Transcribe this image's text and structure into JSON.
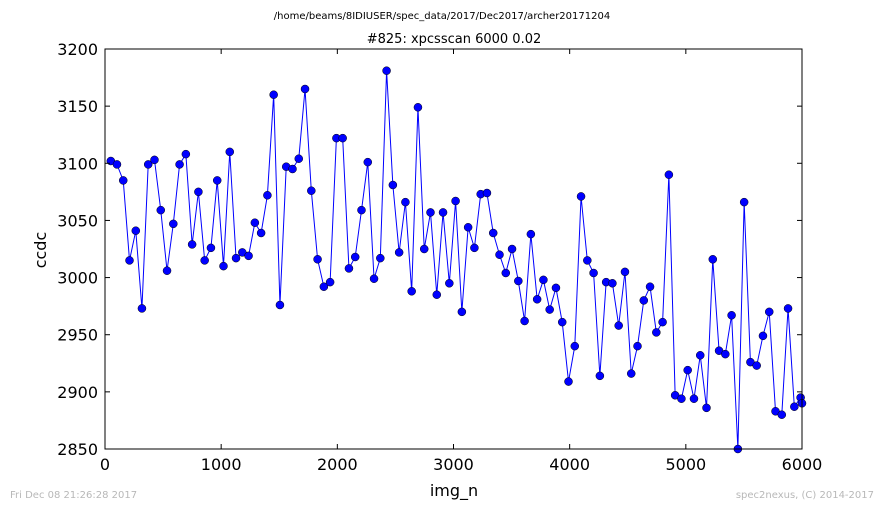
{
  "chart_data": {
    "type": "line",
    "suptitle": "/home/beams/8IDIUSER/spec_data/2017/Dec2017/archer20171204",
    "title": "#825: xpcsscan 6000 0.02",
    "xlabel": "img_n",
    "ylabel": "ccdc",
    "xlim": [
      0,
      6000
    ],
    "ylim": [
      2850,
      3200
    ],
    "xticks": [
      0,
      1000,
      2000,
      3000,
      4000,
      5000,
      6000
    ],
    "yticks": [
      2850,
      2900,
      2950,
      3000,
      3050,
      3100,
      3150,
      3200
    ],
    "grid": false,
    "legend": "none",
    "series": [
      {
        "color": "#0000ff",
        "marker": "circle",
        "x": [
          50,
          103,
          157,
          211,
          265,
          318,
          372,
          426,
          480,
          534,
          588,
          642,
          696,
          750,
          804,
          858,
          912,
          966,
          1020,
          1074,
          1128,
          1182,
          1236,
          1290,
          1344,
          1398,
          1452,
          1506,
          1560,
          1614,
          1668,
          1722,
          1776,
          1830,
          1884,
          1938,
          1992,
          2046,
          2100,
          2154,
          2208,
          2262,
          2316,
          2370,
          2424,
          2478,
          2532,
          2586,
          2640,
          2694,
          2748,
          2802,
          2856,
          2910,
          2964,
          3018,
          3072,
          3126,
          3180,
          3234,
          3288,
          3342,
          3396,
          3450,
          3504,
          3558,
          3612,
          3666,
          3720,
          3774,
          3828,
          3882,
          3936,
          3990,
          4044,
          4098,
          4152,
          4206,
          4260,
          4314,
          4368,
          4422,
          4476,
          4530,
          4584,
          4638,
          4692,
          4746,
          4800,
          4854,
          4908,
          4962,
          5016,
          5070,
          5124,
          5178,
          5232,
          5286,
          5340,
          5394,
          5448,
          5502,
          5556,
          5610,
          5664,
          5718,
          5772,
          5826,
          5880,
          5934,
          5988,
          6000
        ],
        "y": [
          3102,
          3099,
          3085,
          3015,
          3041,
          2973,
          3099,
          3103,
          3059,
          3006,
          3047,
          3099,
          3108,
          3029,
          3075,
          3015,
          3026,
          3085,
          3010,
          3110,
          3017,
          3022,
          3019,
          3048,
          3039,
          3072,
          3160,
          2976,
          3097,
          3095,
          3104,
          3165,
          3076,
          3016,
          2992,
          2996,
          3122,
          3122,
          3008,
          3018,
          3059,
          3101,
          2999,
          3017,
          3181,
          3081,
          3022,
          3066,
          2988,
          3149,
          3025,
          3057,
          2985,
          3057,
          2995,
          3067,
          2970,
          3044,
          3026,
          3073,
          3074,
          3039,
          3020,
          3004,
          3025,
          2997,
          2962,
          3038,
          2981,
          2998,
          2972,
          2991,
          2961,
          2909,
          2940,
          3071,
          3015,
          3004,
          2914,
          2996,
          2995,
          2958,
          3005,
          2916,
          2940,
          2980,
          2992,
          2952,
          2961,
          3090,
          2897,
          2894,
          2919,
          2894,
          2932,
          2886,
          3016,
          2936,
          2933,
          2967,
          2850,
          3066,
          2926,
          2923,
          2949,
          2970,
          2883,
          2880,
          2973,
          2887,
          2895,
          2890
        ]
      }
    ]
  },
  "footer": {
    "left": "Fri Dec 08 21:26:28 2017",
    "right": "spec2nexus, (C) 2014-2017"
  }
}
